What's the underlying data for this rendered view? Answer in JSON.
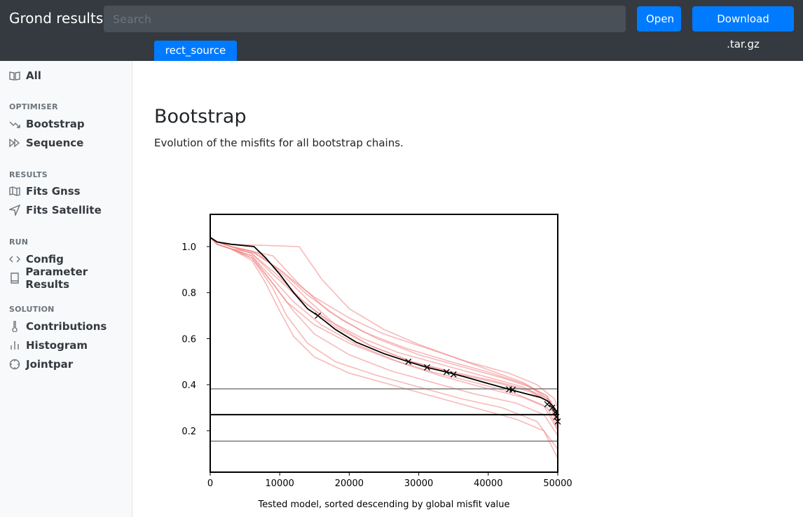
{
  "header": {
    "brand": "Grond results",
    "search_placeholder": "Search",
    "open_label": "Open",
    "download_label": "Download .tar.gz",
    "active_tab": "rect_source"
  },
  "sidebar": {
    "all_label": "All",
    "sections": [
      {
        "title": "OPTIMISER",
        "items": [
          "Bootstrap",
          "Sequence"
        ]
      },
      {
        "title": "RESULTS",
        "items": [
          "Fits Gnss",
          "Fits Satellite"
        ]
      },
      {
        "title": "RUN",
        "items": [
          "Config",
          "Parameter Results"
        ]
      },
      {
        "title": "SOLUTION",
        "items": [
          "Contributions",
          "Histogram",
          "Jointpar"
        ]
      }
    ]
  },
  "main": {
    "title": "Bootstrap",
    "description": "Evolution of the misfits for all bootstrap chains."
  },
  "colors": {
    "header_bg": "#343a40",
    "accent": "#007bff",
    "bootstrap_chain": "#f08080",
    "global_chain": "#000000",
    "reference_line": "#707070"
  },
  "chart_data": {
    "type": "line",
    "xlabel": "Tested model, sorted descending by global misfit value",
    "ylabel": "",
    "xlim": [
      0,
      50000
    ],
    "ylim": [
      0.02,
      1.14
    ],
    "x_ticks": [
      "0",
      "10000",
      "20000",
      "30000",
      "40000",
      "50000"
    ],
    "y_ticks": [
      "0.2",
      "0.4",
      "0.6",
      "0.8",
      "1.0"
    ],
    "grid": false,
    "global_curve": {
      "x": [
        0,
        1000,
        3000,
        6300,
        8000,
        10000,
        12000,
        14000,
        15500,
        18000,
        21000,
        25000,
        28500,
        31200,
        34000,
        36500,
        40000,
        43000,
        45500,
        47500,
        48500,
        49200,
        49600,
        50000
      ],
      "y": [
        1.04,
        1.02,
        1.01,
        1.0,
        0.95,
        0.88,
        0.8,
        0.73,
        0.7,
        0.64,
        0.585,
        0.535,
        0.5,
        0.475,
        0.455,
        0.435,
        0.405,
        0.38,
        0.36,
        0.345,
        0.33,
        0.31,
        0.295,
        0.27
      ]
    },
    "bootstrap_curves": [
      {
        "x": [
          0,
          1000,
          3000,
          12800,
          16000,
          20000,
          25000,
          30000,
          35000,
          40000,
          45000,
          48500,
          50000
        ],
        "y": [
          1.04,
          1.02,
          1.01,
          1.0,
          0.86,
          0.73,
          0.64,
          0.575,
          0.52,
          0.465,
          0.41,
          0.35,
          0.25
        ]
      },
      {
        "x": [
          0,
          1000,
          3000,
          9000,
          13000,
          17000,
          22000,
          28000,
          34000,
          40000,
          45000,
          48500,
          50000
        ],
        "y": [
          1.04,
          1.02,
          1.0,
          0.96,
          0.83,
          0.72,
          0.63,
          0.56,
          0.505,
          0.455,
          0.405,
          0.35,
          0.24
        ]
      },
      {
        "x": [
          0,
          1000,
          3000,
          7000,
          10000,
          14000,
          18000,
          23000,
          29000,
          35000,
          41000,
          46000,
          49000,
          50000
        ],
        "y": [
          1.04,
          1.01,
          0.99,
          0.97,
          0.89,
          0.77,
          0.66,
          0.57,
          0.5,
          0.45,
          0.41,
          0.37,
          0.32,
          0.24
        ]
      },
      {
        "x": [
          0,
          1000,
          3000,
          6000,
          9000,
          12000,
          16000,
          21000,
          27000,
          33000,
          39000,
          45000,
          48500,
          50000
        ],
        "y": [
          1.04,
          1.01,
          0.99,
          0.96,
          0.86,
          0.76,
          0.66,
          0.575,
          0.5,
          0.44,
          0.39,
          0.345,
          0.3,
          0.21
        ]
      },
      {
        "x": [
          0,
          1000,
          3000,
          6000,
          9000,
          12000,
          15000,
          20000,
          26000,
          32000,
          38000,
          44000,
          48000,
          50000
        ],
        "y": [
          1.04,
          1.01,
          0.99,
          0.95,
          0.84,
          0.72,
          0.62,
          0.53,
          0.46,
          0.41,
          0.36,
          0.32,
          0.27,
          0.18
        ]
      },
      {
        "x": [
          0,
          1000,
          3000,
          6000,
          9000,
          11000,
          14000,
          18000,
          24000,
          30000,
          36000,
          42000,
          47000,
          50000
        ],
        "y": [
          1.04,
          1.01,
          0.99,
          0.95,
          0.82,
          0.7,
          0.58,
          0.5,
          0.44,
          0.39,
          0.34,
          0.3,
          0.24,
          0.12
        ]
      },
      {
        "x": [
          0,
          1000,
          3000,
          6000,
          8000,
          10000,
          12000,
          15000,
          20000,
          26000,
          32000,
          38000,
          44000,
          48000,
          50000
        ],
        "y": [
          1.04,
          1.01,
          0.99,
          0.94,
          0.84,
          0.72,
          0.61,
          0.52,
          0.45,
          0.4,
          0.35,
          0.3,
          0.25,
          0.2,
          0.08
        ]
      },
      {
        "x": [
          0,
          1000,
          3000,
          6000,
          9000,
          13000,
          17000,
          22000,
          27000,
          33000,
          39000,
          45000,
          48500,
          50000
        ],
        "y": [
          1.04,
          1.02,
          1.0,
          0.97,
          0.88,
          0.77,
          0.68,
          0.6,
          0.54,
          0.49,
          0.44,
          0.39,
          0.34,
          0.22
        ]
      },
      {
        "x": [
          0,
          1000,
          3000,
          6000,
          10000,
          14000,
          19000,
          24000,
          30000,
          36000,
          42000,
          46000,
          49000,
          50000
        ],
        "y": [
          1.04,
          1.02,
          1.0,
          0.98,
          0.9,
          0.79,
          0.68,
          0.6,
          0.53,
          0.48,
          0.43,
          0.39,
          0.33,
          0.26
        ]
      },
      {
        "x": [
          0,
          1000,
          3000,
          6000,
          8500,
          11000,
          15000,
          20000,
          26000,
          32000,
          38000,
          44000,
          48000,
          50000
        ],
        "y": [
          1.04,
          1.01,
          0.99,
          0.96,
          0.86,
          0.76,
          0.66,
          0.58,
          0.51,
          0.455,
          0.41,
          0.36,
          0.31,
          0.2
        ]
      },
      {
        "x": [
          0,
          1000,
          3000,
          6000,
          10000,
          15000,
          20000,
          25000,
          31000,
          37000,
          43000,
          47000,
          49500,
          50000
        ],
        "y": [
          1.04,
          1.02,
          1.0,
          0.98,
          0.9,
          0.78,
          0.69,
          0.62,
          0.56,
          0.5,
          0.45,
          0.4,
          0.34,
          0.3
        ]
      },
      {
        "x": [
          0,
          1000,
          3000,
          6000,
          9500,
          13500,
          18000,
          23000,
          29000,
          35000,
          41000,
          46000,
          49000,
          50000
        ],
        "y": [
          1.04,
          1.02,
          1.0,
          0.97,
          0.88,
          0.76,
          0.65,
          0.57,
          0.5,
          0.455,
          0.415,
          0.375,
          0.32,
          0.25
        ]
      }
    ],
    "markers_x": [
      15500,
      28500,
      31200,
      34000,
      35000,
      43000,
      43500,
      48500,
      49200,
      49600,
      49800,
      50000
    ],
    "markers_y": [
      0.7,
      0.5,
      0.475,
      0.455,
      0.445,
      0.38,
      0.378,
      0.315,
      0.3,
      0.28,
      0.26,
      0.24
    ],
    "horizontal_lines": [
      {
        "y": 0.382,
        "style": "thin"
      },
      {
        "y": 0.27,
        "style": "thick"
      },
      {
        "y": 0.155,
        "style": "thin"
      }
    ]
  }
}
